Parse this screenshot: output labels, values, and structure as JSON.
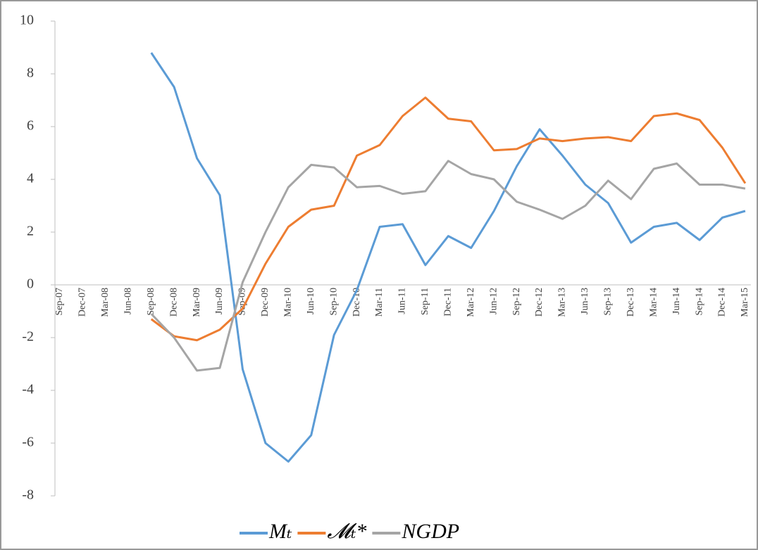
{
  "chart_data": {
    "type": "line",
    "categories": [
      "Sep-07",
      "Dec-07",
      "Mar-08",
      "Jun-08",
      "Sep-08",
      "Dec-08",
      "Mar-09",
      "Jun-09",
      "Sep-09",
      "Dec-09",
      "Mar-10",
      "Jun-10",
      "Sep-10",
      "Dec-10",
      "Mar-11",
      "Jun-11",
      "Sep-11",
      "Dec-11",
      "Mar-12",
      "Jun-12",
      "Sep-12",
      "Dec-12",
      "Mar-13",
      "Jun-13",
      "Sep-13",
      "Dec-13",
      "Mar-14",
      "Jun-14",
      "Sep-14",
      "Dec-14",
      "Mar-15"
    ],
    "series": [
      {
        "name": "Mₜ",
        "color": "#5b9bd5",
        "values": [
          null,
          null,
          null,
          null,
          8.8,
          7.5,
          4.8,
          3.4,
          -3.2,
          -6.0,
          -6.7,
          -5.7,
          -1.9,
          -0.2,
          2.2,
          2.3,
          0.75,
          1.85,
          1.4,
          2.8,
          4.5,
          5.9,
          4.9,
          3.8,
          3.1,
          1.6,
          2.2,
          2.35,
          1.7,
          2.55,
          2.8
        ]
      },
      {
        "name": "𝓜ₜ*",
        "color": "#ed7d31",
        "values": [
          null,
          null,
          null,
          null,
          -1.3,
          -1.95,
          -2.1,
          -1.7,
          -0.9,
          0.8,
          2.2,
          2.85,
          3.0,
          4.9,
          5.3,
          6.4,
          7.1,
          6.3,
          6.2,
          5.1,
          5.15,
          5.55,
          5.45,
          5.55,
          5.6,
          5.45,
          6.4,
          6.5,
          6.25,
          5.2,
          3.85
        ]
      },
      {
        "name": "NGDP",
        "color": "#a5a5a5",
        "values": [
          null,
          null,
          null,
          null,
          -1.1,
          -2.0,
          -3.25,
          -3.15,
          0.1,
          2.0,
          3.7,
          4.55,
          4.45,
          3.7,
          3.75,
          3.45,
          3.55,
          4.7,
          4.2,
          4.0,
          3.15,
          2.85,
          2.5,
          3.0,
          3.95,
          3.25,
          4.4,
          4.6,
          3.8,
          3.8,
          3.65
        ]
      }
    ],
    "ylim": [
      -8,
      10
    ],
    "yticks": [
      -8,
      -6,
      -4,
      -2,
      0,
      2,
      4,
      6,
      8,
      10
    ]
  }
}
